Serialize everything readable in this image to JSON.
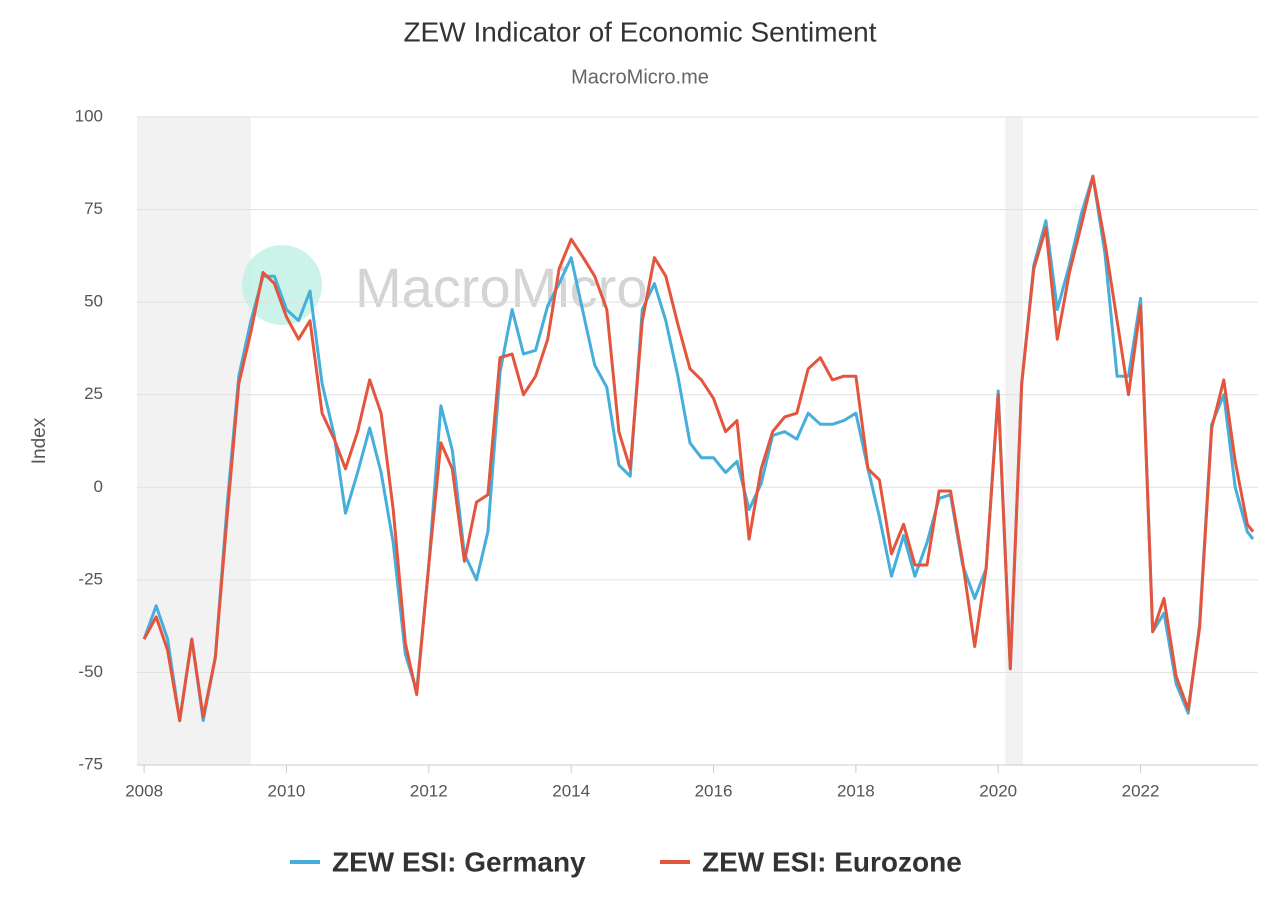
{
  "chart_data": {
    "type": "line",
    "title": "ZEW Indicator of Economic Sentiment",
    "subtitle": "MacroMicro.me",
    "watermark": "MacroMicro",
    "y_label": "Index",
    "xlim": [
      2007.9,
      2023.65
    ],
    "xticks": [
      2008,
      2010,
      2012,
      2014,
      2016,
      2018,
      2020,
      2022
    ],
    "ylim": [
      -75,
      100
    ],
    "yticks": [
      -75,
      -50,
      -25,
      0,
      25,
      50,
      75,
      100
    ],
    "grid": true,
    "legend": "bottom",
    "recession_bands": [
      [
        2007.9,
        2009.5
      ],
      [
        2020.1,
        2020.35
      ]
    ],
    "x": [
      2008,
      2008.17,
      2008.33,
      2008.5,
      2008.67,
      2008.83,
      2009,
      2009.17,
      2009.33,
      2009.5,
      2009.67,
      2009.83,
      2010,
      2010.17,
      2010.33,
      2010.5,
      2010.67,
      2010.83,
      2011,
      2011.17,
      2011.33,
      2011.5,
      2011.67,
      2011.83,
      2012,
      2012.17,
      2012.33,
      2012.5,
      2012.67,
      2012.83,
      2013,
      2013.17,
      2013.33,
      2013.5,
      2013.67,
      2013.83,
      2014,
      2014.17,
      2014.33,
      2014.5,
      2014.67,
      2014.83,
      2015,
      2015.17,
      2015.33,
      2015.5,
      2015.67,
      2015.83,
      2016,
      2016.17,
      2016.33,
      2016.5,
      2016.67,
      2016.83,
      2017,
      2017.17,
      2017.33,
      2017.5,
      2017.67,
      2017.83,
      2018,
      2018.17,
      2018.33,
      2018.5,
      2018.67,
      2018.83,
      2019,
      2019.17,
      2019.33,
      2019.5,
      2019.67,
      2019.83,
      2020,
      2020.17,
      2020.33,
      2020.5,
      2020.67,
      2020.83,
      2021,
      2021.17,
      2021.33,
      2021.5,
      2021.67,
      2021.83,
      2022,
      2022.17,
      2022.33,
      2022.5,
      2022.67,
      2022.83,
      2023,
      2023.17,
      2023.33,
      2023.5,
      2023.58
    ],
    "series": [
      {
        "name": "ZEW ESI: Germany",
        "color": "#45aedb",
        "values": [
          -41,
          -32,
          -41,
          -63,
          -41,
          -63,
          -46,
          -4,
          30,
          45,
          57,
          57,
          48,
          45,
          53,
          28,
          14,
          -7,
          4,
          16,
          4,
          -15,
          -45,
          -55,
          -21,
          22,
          10,
          -18,
          -25,
          -12,
          31,
          48,
          36,
          37,
          49,
          55,
          62,
          47,
          33,
          27,
          6,
          3,
          48,
          55,
          45,
          30,
          12,
          8,
          8,
          4,
          7,
          -6,
          1,
          14,
          15,
          13,
          20,
          17,
          17,
          18,
          20,
          5,
          -8,
          -24,
          -13,
          -24,
          -15,
          -3,
          -2,
          -21,
          -30,
          -22,
          26,
          -49,
          28,
          60,
          72,
          48,
          60,
          74,
          84,
          63,
          30,
          30,
          51,
          -39,
          -34,
          -53,
          -61,
          -37,
          17,
          25,
          0,
          -12,
          -14
        ]
      },
      {
        "name": "ZEW ESI: Eurozone",
        "color": "#e4553e",
        "values": [
          -41,
          -35,
          -44,
          -63,
          -41,
          -62,
          -46,
          -7,
          28,
          42,
          58,
          55,
          46,
          40,
          45,
          20,
          13,
          5,
          15,
          29,
          20,
          -6,
          -42,
          -56,
          -21,
          12,
          5,
          -20,
          -4,
          -2,
          35,
          36,
          25,
          30,
          40,
          59,
          67,
          62,
          57,
          48,
          15,
          5,
          45,
          62,
          57,
          44,
          32,
          29,
          24,
          15,
          18,
          -14,
          5,
          15,
          19,
          20,
          32,
          35,
          29,
          30,
          30,
          5,
          2,
          -18,
          -10,
          -21,
          -21,
          -1,
          -1,
          -20,
          -43,
          -22,
          25,
          -49,
          28,
          59,
          70,
          40,
          58,
          71,
          84,
          66,
          45,
          25,
          49,
          -39,
          -30,
          -51,
          -60,
          -38,
          16,
          29,
          7,
          -10,
          -12
        ]
      }
    ]
  }
}
